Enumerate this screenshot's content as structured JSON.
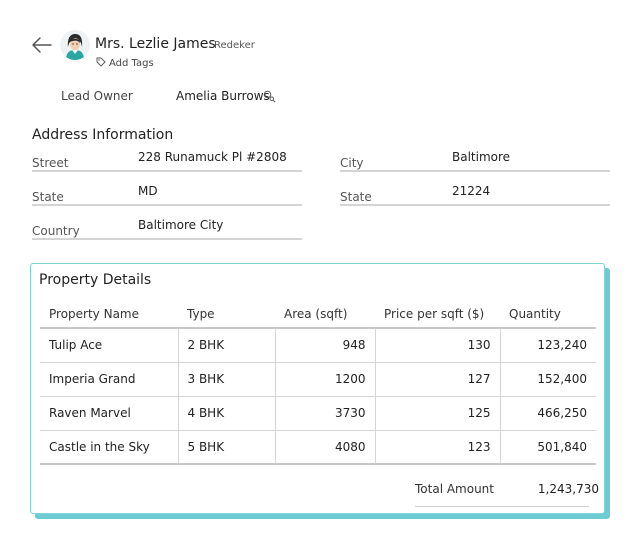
{
  "header": {
    "contact_name": "Mrs. Lezlie James",
    "contact_surname": "Redeker",
    "add_tags_label": "Add Tags"
  },
  "lead_owner": {
    "label": "Lead Owner",
    "value": "Amelia Burrows"
  },
  "address": {
    "title": "Address Information",
    "street_label": "Street",
    "street_value": "228 Runamuck Pl #2808",
    "city_label": "City",
    "city_value": "Baltimore",
    "state_label": "State",
    "state_value": "MD",
    "zip_label": "State",
    "zip_value": "21224",
    "country_label": "Country",
    "country_value": "Baltimore City"
  },
  "property": {
    "title": "Property Details",
    "headers": [
      "Property Name",
      "Type",
      "Area (sqft)",
      "Price per sqft ($)",
      "Quantity"
    ],
    "rows": [
      [
        "Tulip Ace",
        "2 BHK",
        "948",
        "130",
        "123,240"
      ],
      [
        "Imperia Grand",
        "3 BHK",
        "1200",
        "127",
        "152,400"
      ],
      [
        "Raven Marvel",
        "4 BHK",
        "3730",
        "125",
        "466,250"
      ],
      [
        "Castle in the Sky",
        "5 BHK",
        "4080",
        "123",
        "501,840"
      ]
    ],
    "total_label": "Total Amount",
    "total_value": "1,243,730"
  },
  "icons": {
    "back": "back-arrow-icon",
    "tag": "tag-icon",
    "search": "search-icon"
  },
  "colors": {
    "accent": "#6dcbd3",
    "avatar_bg": "#2aa7a0"
  }
}
